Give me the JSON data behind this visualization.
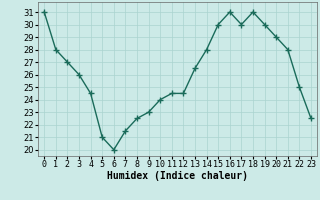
{
  "x": [
    0,
    1,
    2,
    3,
    4,
    5,
    6,
    7,
    8,
    9,
    10,
    11,
    12,
    13,
    14,
    15,
    16,
    17,
    18,
    19,
    20,
    21,
    22,
    23
  ],
  "y": [
    31.0,
    28.0,
    27.0,
    26.0,
    24.5,
    21.0,
    20.0,
    21.5,
    22.5,
    23.0,
    24.0,
    24.5,
    24.5,
    26.5,
    28.0,
    30.0,
    31.0,
    30.0,
    31.0,
    30.0,
    29.0,
    28.0,
    25.0,
    22.5
  ],
  "line_color": "#1a6b5a",
  "marker": "+",
  "marker_size": 4,
  "bg_color": "#cceae7",
  "grid_color": "#aad4d0",
  "xlabel": "Humidex (Indice chaleur)",
  "xlabel_fontsize": 7,
  "xtick_labels": [
    "0",
    "1",
    "2",
    "3",
    "4",
    "5",
    "6",
    "7",
    "8",
    "9",
    "10",
    "11",
    "12",
    "13",
    "14",
    "15",
    "16",
    "17",
    "18",
    "19",
    "20",
    "21",
    "22",
    "23"
  ],
  "ylim": [
    19.5,
    31.8
  ],
  "xlim": [
    -0.5,
    23.5
  ],
  "yticks": [
    20,
    21,
    22,
    23,
    24,
    25,
    26,
    27,
    28,
    29,
    30,
    31
  ],
  "tick_fontsize": 6,
  "line_width": 1.0
}
